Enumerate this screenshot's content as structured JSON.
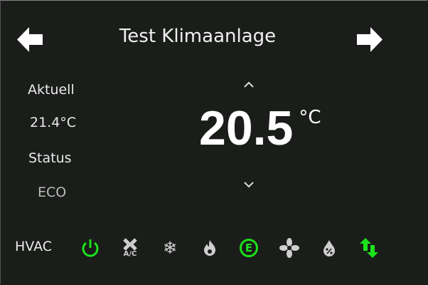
{
  "header": {
    "title": "Test Klimaanlage",
    "prev_icon": "arrow-left-icon",
    "next_icon": "arrow-right-icon"
  },
  "left": {
    "current_label": "Aktuell",
    "current_value": "21.4°C",
    "status_label": "Status",
    "status_value": "ECO"
  },
  "setpoint": {
    "value": "20.5",
    "unit": "°C",
    "up_icon": "chevron-up-icon",
    "down_icon": "chevron-down-icon"
  },
  "hvac": {
    "label": "HVAC",
    "modes": [
      {
        "icon": "power-icon",
        "active": true
      },
      {
        "icon": "ac-fan-icon",
        "text": "A/C",
        "active": false
      },
      {
        "icon": "snowflake-icon",
        "active": false
      },
      {
        "icon": "flame-icon",
        "active": false
      },
      {
        "icon": "eco-icon",
        "text": "E",
        "active": true
      },
      {
        "icon": "fan-icon",
        "active": false
      },
      {
        "icon": "humidity-drop-icon",
        "active": false
      },
      {
        "icon": "swap-arrows-icon",
        "active": true
      }
    ]
  },
  "colors": {
    "background": "#1a1d1a",
    "active": "#1be21b",
    "inactive": "#cfcfcf"
  }
}
